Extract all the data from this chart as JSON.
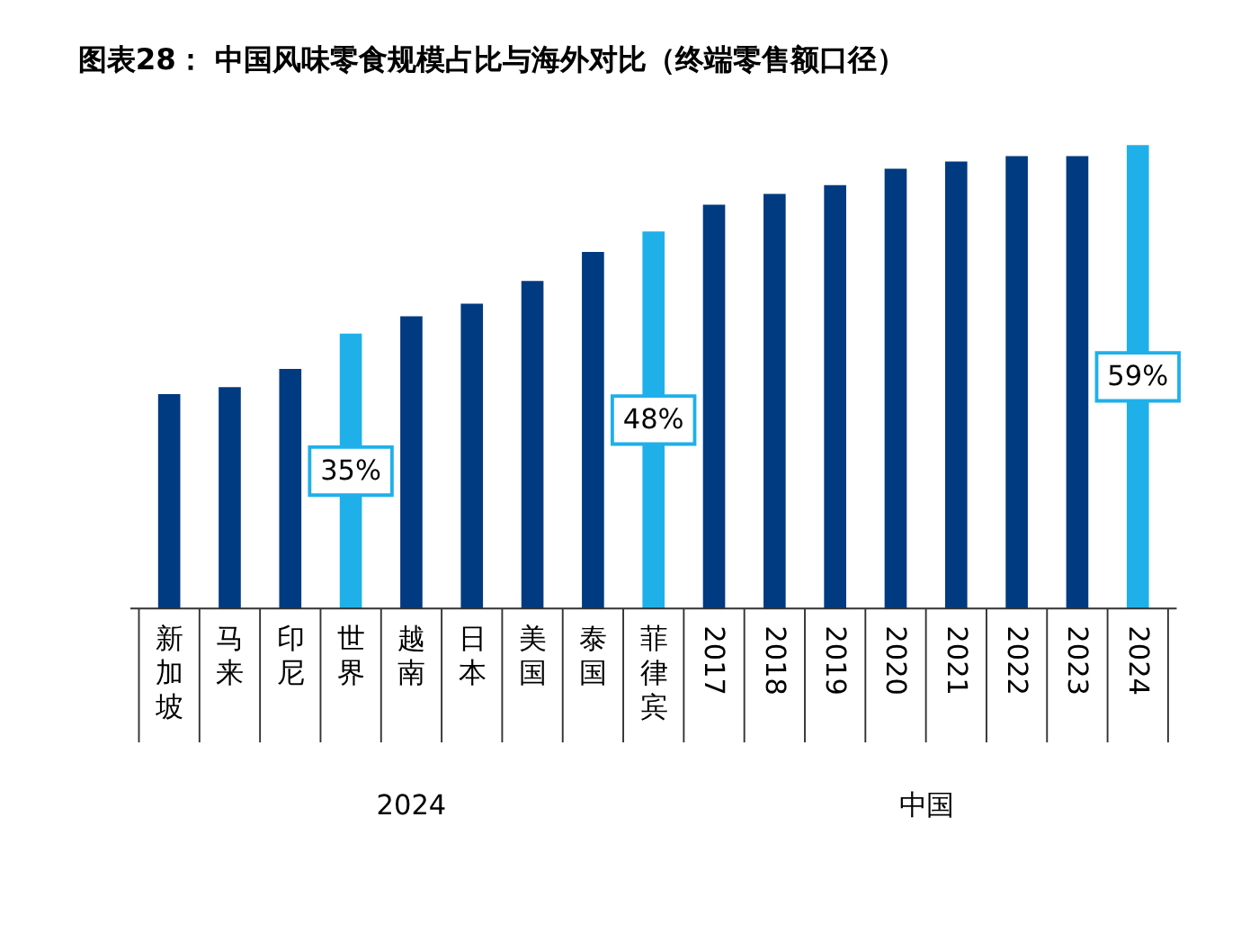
{
  "chart_data": {
    "type": "bar",
    "title": "图表28：  中国风味零食规模占比与海外对比（终端零售额口径）",
    "categories": [
      "新加坡",
      "马来",
      "印尼",
      "世界",
      "越南",
      "日本",
      "美国",
      "泰国",
      "菲律宾",
      "2017",
      "2018",
      "2019",
      "2020",
      "2021",
      "2022",
      "2023",
      "2024"
    ],
    "values": [
      27.3,
      28.2,
      30.5,
      35,
      37.2,
      38.8,
      41.7,
      45.4,
      48,
      51.4,
      52.8,
      53.9,
      56,
      56.9,
      57.6,
      57.6,
      59
    ],
    "colors": [
      "#003a80",
      "#003a80",
      "#003a80",
      "#1fb0ea",
      "#003a80",
      "#003a80",
      "#003a80",
      "#003a80",
      "#1fb0ea",
      "#003a80",
      "#003a80",
      "#003a80",
      "#003a80",
      "#003a80",
      "#003a80",
      "#003a80",
      "#1fb0ea"
    ],
    "value_labels": [
      null,
      null,
      null,
      "35%",
      null,
      null,
      null,
      null,
      "48%",
      null,
      null,
      null,
      null,
      null,
      null,
      null,
      "59%"
    ],
    "annotations": [
      "2024",
      "中国"
    ]
  }
}
